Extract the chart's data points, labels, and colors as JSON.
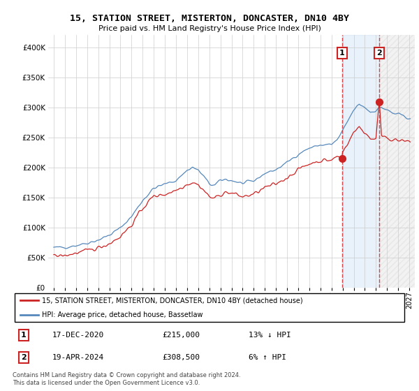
{
  "title": "15, STATION STREET, MISTERTON, DONCASTER, DN10 4BY",
  "subtitle": "Price paid vs. HM Land Registry's House Price Index (HPI)",
  "ylim": [
    0,
    420000
  ],
  "yticks": [
    0,
    50000,
    100000,
    150000,
    200000,
    250000,
    300000,
    350000,
    400000
  ],
  "background_color": "#ffffff",
  "plot_bg_color": "#ffffff",
  "grid_color": "#cccccc",
  "hpi_color": "#5588bb",
  "price_color": "#cc2222",
  "shade_color": "#ddeeff",
  "marker1_date": "17-DEC-2020",
  "marker1_price": 215000,
  "marker1_hpi_pct": "13% ↓ HPI",
  "marker2_date": "19-APR-2024",
  "marker2_price": 308500,
  "marker2_hpi_pct": "6% ↑ HPI",
  "legend_label1": "15, STATION STREET, MISTERTON, DONCASTER, DN10 4BY (detached house)",
  "legend_label2": "HPI: Average price, detached house, Bassetlaw",
  "footer": "Contains HM Land Registry data © Crown copyright and database right 2024.\nThis data is licensed under the Open Government Licence v3.0.",
  "sale1_x": 2020.96,
  "sale1_y": 215000,
  "sale2_x": 2024.3,
  "sale2_y": 308500,
  "vline1_x": 2020.96,
  "vline2_x": 2024.3,
  "xmin": 1995.0,
  "xmax": 2027.0
}
